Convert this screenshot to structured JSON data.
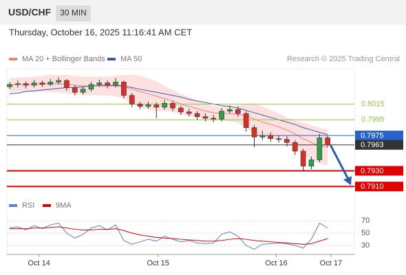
{
  "chart_data": {
    "type": "candlestick",
    "symbol": "USD/CHF",
    "interval": "30 MIN",
    "datetime": "Thursday, October 16, 2025 11:16:41 AM CET",
    "credit": "Research © 2025 Trading Central",
    "ylim": [
      0.7898,
      0.806
    ],
    "up_color": "#2f9e44",
    "down_color": "#d93025",
    "xticks": [
      {
        "value": 3.6,
        "label": "Oct 14"
      },
      {
        "value": 18.2,
        "label": "Oct 15"
      },
      {
        "value": 32.7,
        "label": "Oct 16"
      },
      {
        "value": 39.4,
        "label": "Oct 17"
      }
    ],
    "candles": [
      [
        0.8037,
        0.8043,
        0.8034,
        0.804
      ],
      [
        0.804,
        0.8045,
        0.8036,
        0.8041
      ],
      [
        0.8041,
        0.8044,
        0.8035,
        0.8039
      ],
      [
        0.8039,
        0.8046,
        0.8036,
        0.8042
      ],
      [
        0.8042,
        0.8045,
        0.8037,
        0.804
      ],
      [
        0.804,
        0.8047,
        0.8038,
        0.8043
      ],
      [
        0.8043,
        0.8049,
        0.804,
        0.8045
      ],
      [
        0.8045,
        0.8047,
        0.8032,
        0.8036
      ],
      [
        0.8036,
        0.8039,
        0.8026,
        0.803
      ],
      [
        0.803,
        0.8037,
        0.8027,
        0.8034
      ],
      [
        0.8034,
        0.8043,
        0.8031,
        0.804
      ],
      [
        0.804,
        0.8046,
        0.8037,
        0.8042
      ],
      [
        0.8042,
        0.8045,
        0.8035,
        0.8039
      ],
      [
        0.8039,
        0.8048,
        0.8036,
        0.8043
      ],
      [
        0.8043,
        0.8045,
        0.8022,
        0.8026
      ],
      [
        0.8026,
        0.8029,
        0.8011,
        0.8015
      ],
      [
        0.8015,
        0.8018,
        0.8008,
        0.8012
      ],
      [
        0.8012,
        0.8018,
        0.8009,
        0.8014
      ],
      [
        0.8014,
        0.8017,
        0.7997,
        0.8011
      ],
      [
        0.8011,
        0.802,
        0.8008,
        0.8016
      ],
      [
        0.8016,
        0.8019,
        0.8006,
        0.801
      ],
      [
        0.801,
        0.8013,
        0.8001,
        0.8005
      ],
      [
        0.8005,
        0.8009,
        0.7999,
        0.8003
      ],
      [
        0.8003,
        0.8006,
        0.7995,
        0.7999
      ],
      [
        0.7999,
        0.8003,
        0.7993,
        0.7997
      ],
      [
        0.7997,
        0.8001,
        0.7992,
        0.7996
      ],
      [
        0.7996,
        0.801,
        0.7993,
        0.8006
      ],
      [
        0.8006,
        0.8013,
        0.8003,
        0.8008
      ],
      [
        0.8008,
        0.8012,
        0.7999,
        0.8003
      ],
      [
        0.8003,
        0.8006,
        0.798,
        0.7985
      ],
      [
        0.7985,
        0.7988,
        0.796,
        0.7973
      ],
      [
        0.7973,
        0.7981,
        0.7969,
        0.7975
      ],
      [
        0.7975,
        0.7979,
        0.7967,
        0.7971
      ],
      [
        0.7971,
        0.7975,
        0.7966,
        0.797
      ],
      [
        0.797,
        0.7974,
        0.7961,
        0.7966
      ],
      [
        0.7966,
        0.7969,
        0.795,
        0.7955
      ],
      [
        0.7955,
        0.7958,
        0.793,
        0.7936
      ],
      [
        0.7936,
        0.7948,
        0.7932,
        0.7944
      ],
      [
        0.7944,
        0.7977,
        0.7941,
        0.7972
      ],
      [
        0.7972,
        0.7975,
        0.796,
        0.7963
      ]
    ],
    "series": [
      {
        "name": "MA 20 + Bollinger Bands",
        "color": "#f08080",
        "band_color": "#fcd9d9",
        "values": [
          0.8039,
          0.804,
          0.804,
          0.804,
          0.8041,
          0.8041,
          0.8041,
          0.804,
          0.8039,
          0.8038,
          0.8038,
          0.8038,
          0.8038,
          0.8038,
          0.8037,
          0.8034,
          0.8031,
          0.8028,
          0.8025,
          0.8022,
          0.8019,
          0.8015,
          0.8012,
          0.8009,
          0.8006,
          0.8004,
          0.8003,
          0.8003,
          0.8002,
          0.8,
          0.7996,
          0.7992,
          0.7989,
          0.7986,
          0.7982,
          0.7977,
          0.7971,
          0.7966,
          0.7962,
          0.796
        ],
        "upper": [
          0.8048,
          0.8049,
          0.8049,
          0.805,
          0.8051,
          0.8052,
          0.8052,
          0.8052,
          0.8051,
          0.805,
          0.805,
          0.805,
          0.805,
          0.8051,
          0.8052,
          0.8053,
          0.8051,
          0.8048,
          0.8044,
          0.8038,
          0.8033,
          0.8028,
          0.8024,
          0.802,
          0.8016,
          0.8013,
          0.8012,
          0.8013,
          0.8013,
          0.8015,
          0.8016,
          0.8012,
          0.8007,
          0.8003,
          0.7998,
          0.7994,
          0.7991,
          0.7988,
          0.7985,
          0.7983
        ],
        "lower": [
          0.803,
          0.8031,
          0.8031,
          0.803,
          0.8031,
          0.803,
          0.803,
          0.8028,
          0.8027,
          0.8026,
          0.8026,
          0.8026,
          0.8026,
          0.8025,
          0.8022,
          0.8015,
          0.8011,
          0.8008,
          0.8006,
          0.8006,
          0.8005,
          0.8002,
          0.8,
          0.7998,
          0.7996,
          0.7995,
          0.7994,
          0.7993,
          0.7991,
          0.7985,
          0.7976,
          0.7972,
          0.7971,
          0.7969,
          0.7966,
          0.796,
          0.7951,
          0.7944,
          0.7939,
          0.7937
        ]
      },
      {
        "name": "MA 50",
        "color": "#3b5ba5",
        "values": [
          0.8028,
          0.8029,
          0.8031,
          0.8032,
          0.8033,
          0.8034,
          0.8035,
          0.8036,
          0.8036,
          0.8037,
          0.8038,
          0.8039,
          0.8039,
          0.8039,
          0.8038,
          0.8036,
          0.8034,
          0.8032,
          0.803,
          0.8028,
          0.8026,
          0.8024,
          0.8021,
          0.8019,
          0.8017,
          0.8015,
          0.8013,
          0.8012,
          0.801,
          0.8007,
          0.8004,
          0.8001,
          0.7998,
          0.7995,
          0.7992,
          0.7989,
          0.7985,
          0.7982,
          0.7979,
          0.7976
        ]
      }
    ],
    "levels": [
      {
        "value": 0.8015,
        "color": "#8cc63f",
        "style": "text"
      },
      {
        "value": 0.7995,
        "color": "#8cc63f",
        "style": "text"
      },
      {
        "value": 0.7975,
        "color": "#2962c9",
        "style": "box"
      },
      {
        "value": 0.7963,
        "color": "#333333",
        "style": "box"
      },
      {
        "value": 0.793,
        "label": "0.7930",
        "color": "#e00000",
        "style": "box-thick"
      },
      {
        "value": 0.791,
        "label": "0.7910",
        "color": "#e00000",
        "style": "box-thick"
      }
    ],
    "rsi": {
      "ylim": [
        18,
        82
      ],
      "yticks": [
        70,
        50,
        30
      ],
      "series": [
        {
          "name": "RSI",
          "color": "#5b7fd6",
          "values": [
            58,
            60,
            55,
            62,
            57,
            63,
            66,
            50,
            42,
            48,
            58,
            62,
            55,
            63,
            38,
            32,
            36,
            40,
            37,
            45,
            40,
            36,
            38,
            34,
            33,
            34,
            48,
            52,
            45,
            30,
            24,
            32,
            33,
            34,
            33,
            30,
            26,
            40,
            66,
            58
          ]
        },
        {
          "name": "9MA",
          "color": "#e00000",
          "values": [
            57,
            57,
            57,
            58,
            58,
            59,
            60,
            58,
            56,
            55,
            55,
            56,
            56,
            57,
            54,
            50,
            47,
            45,
            43,
            42,
            41,
            40,
            39,
            38,
            37,
            37,
            38,
            40,
            41,
            40,
            38,
            37,
            36,
            35,
            34,
            33,
            32,
            33,
            37,
            41
          ]
        }
      ]
    }
  }
}
